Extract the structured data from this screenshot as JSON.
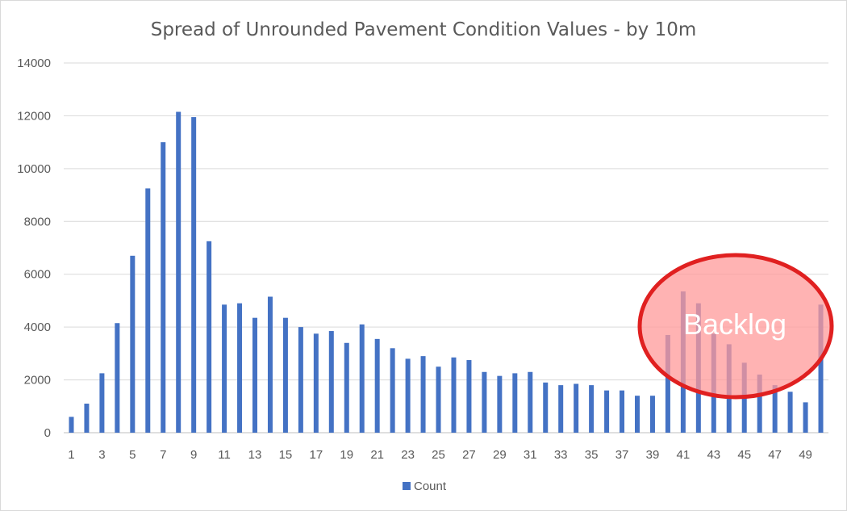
{
  "chart_data": {
    "type": "bar",
    "title": "Spread of Unrounded Pavement Condition Values - by 10m",
    "xlabel": "",
    "ylabel": "",
    "ylim": [
      0,
      14000
    ],
    "yticks": [
      0,
      2000,
      4000,
      6000,
      8000,
      10000,
      12000,
      14000
    ],
    "grid": true,
    "legend_position": "bottom",
    "categories": [
      1,
      2,
      3,
      4,
      5,
      6,
      7,
      8,
      9,
      10,
      11,
      12,
      13,
      14,
      15,
      16,
      17,
      18,
      19,
      20,
      21,
      22,
      23,
      24,
      25,
      26,
      27,
      28,
      29,
      30,
      31,
      32,
      33,
      34,
      35,
      36,
      37,
      38,
      39,
      40,
      41,
      42,
      43,
      44,
      45,
      46,
      47,
      48,
      49,
      50
    ],
    "x_tick_labels": [
      "1",
      "3",
      "5",
      "7",
      "9",
      "11",
      "13",
      "15",
      "17",
      "19",
      "21",
      "23",
      "25",
      "27",
      "29",
      "31",
      "33",
      "35",
      "37",
      "39",
      "41",
      "43",
      "45",
      "47",
      "49"
    ],
    "series": [
      {
        "name": "Count",
        "color": "#4472C4",
        "values": [
          600,
          1100,
          2250,
          4150,
          6700,
          9250,
          11000,
          12150,
          11950,
          7250,
          4850,
          4900,
          4350,
          5150,
          4350,
          4000,
          3750,
          3850,
          3400,
          4100,
          3550,
          3200,
          2800,
          2900,
          2500,
          2850,
          2750,
          2300,
          2150,
          2250,
          2300,
          1900,
          1800,
          1850,
          1800,
          1600,
          1600,
          1400,
          1400,
          3700,
          5350,
          4900,
          3750,
          3350,
          2650,
          2200,
          1800,
          1550,
          1150,
          4850
        ]
      }
    ],
    "annotation": {
      "text": "Backlog",
      "fill_color": "#FF9999",
      "stroke_color": "#E02020"
    }
  }
}
